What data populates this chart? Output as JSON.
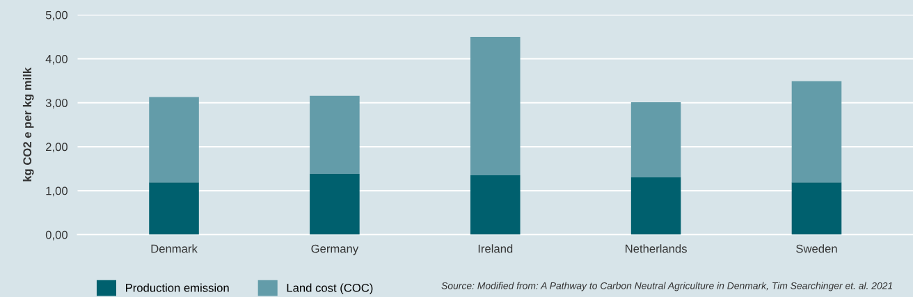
{
  "chart_data": {
    "type": "bar",
    "stacked": true,
    "ylabel": "kg CO2 e per kg milk",
    "categories": [
      "Denmark",
      "Germany",
      "Ireland",
      "Netherlands",
      "Sweden"
    ],
    "series": [
      {
        "name": "Production emission",
        "color": "#00606e",
        "values": [
          1.19,
          1.38,
          1.35,
          1.31,
          1.19
        ]
      },
      {
        "name": "Land cost (COC)",
        "color": "#639ca9",
        "values": [
          1.94,
          1.78,
          3.15,
          1.7,
          2.3
        ]
      }
    ],
    "ylim": [
      0,
      5
    ],
    "yticks": [
      {
        "value": 0,
        "label": "0,00"
      },
      {
        "value": 1,
        "label": "1,00"
      },
      {
        "value": 2,
        "label": "2,00"
      },
      {
        "value": 3,
        "label": "3,00"
      },
      {
        "value": 4,
        "label": "4,00"
      },
      {
        "value": 5,
        "label": "5,00"
      }
    ],
    "grid": "y",
    "legend": "bottom left",
    "annotations": [
      "Source: Modified from: A Pathway to Carbon Neutral Agriculture in Denmark, Tim Searchinger et. al. 2021"
    ]
  }
}
